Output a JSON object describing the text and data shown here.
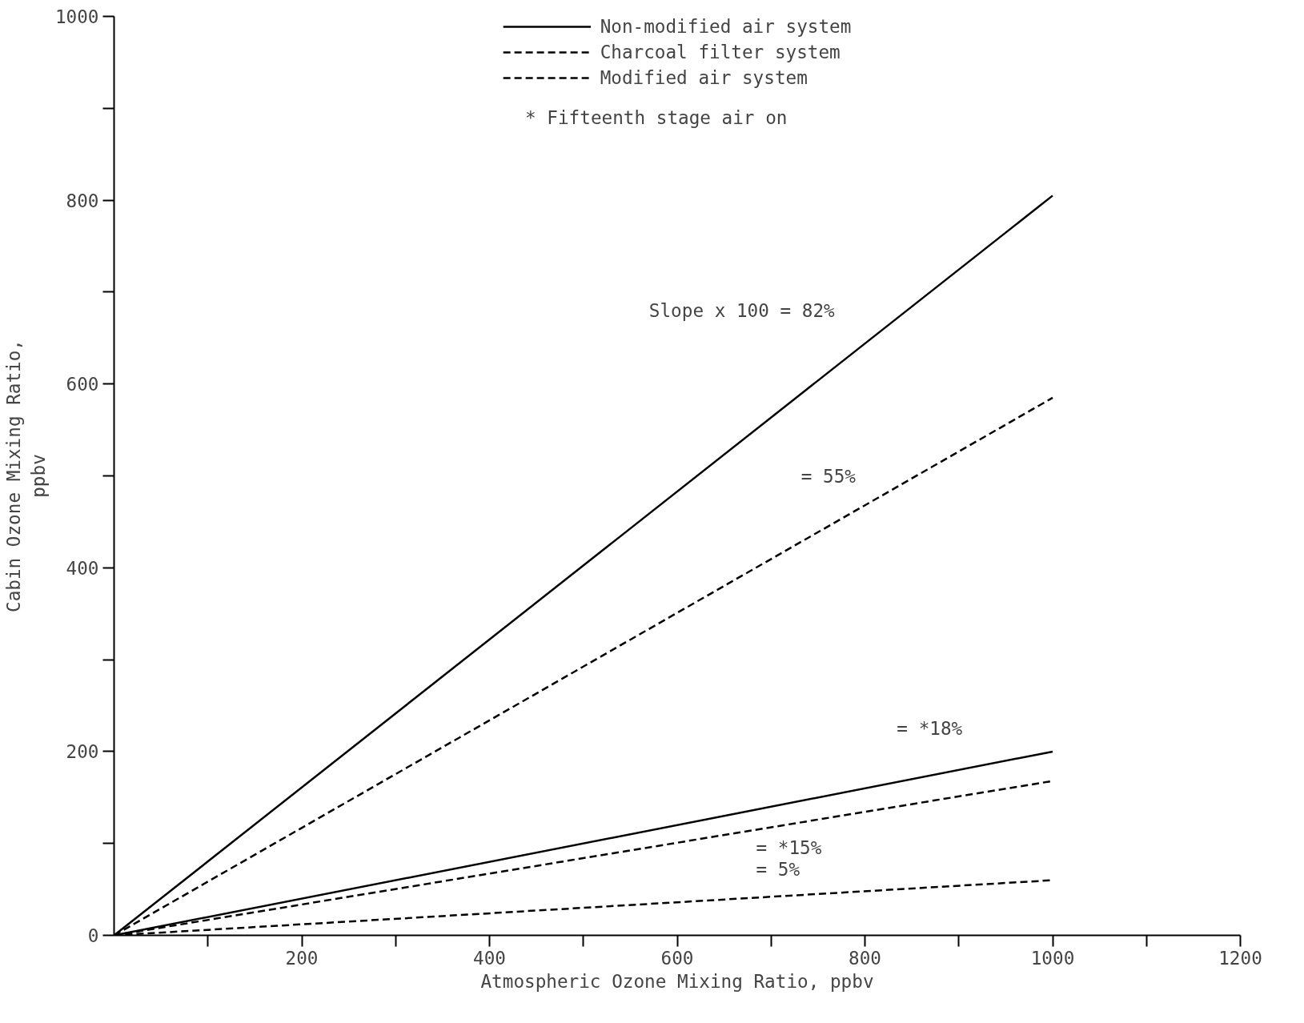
{
  "chart_data": {
    "type": "line",
    "xlabel": "Atmospheric Ozone Mixing Ratio, ppbv",
    "ylabel": "Cabin Ozone Mixing Ratio,\nppbv",
    "x": [
      0,
      1000
    ],
    "series": [
      {
        "name": "Non-modified air system",
        "color": "#000000",
        "values": [
          0,
          805
        ],
        "line_style": "solid"
      },
      {
        "name": "Charcoal filter system",
        "color": "#000000",
        "values": [
          0,
          585
        ],
        "line_style": "dashed"
      },
      {
        "name": "Modified air system",
        "color": "#000000",
        "values": [
          0,
          168
        ],
        "line_style": "dashed"
      },
      {
        "color": "#000000",
        "values": [
          0,
          200
        ],
        "line_style": "solid"
      },
      {
        "color": "#000000",
        "values": [
          0,
          60
        ],
        "line_style": "dashed"
      }
    ],
    "annotations": [
      "*      Fifteenth stage air on",
      "Slope x 100 = 82%",
      "= 55%",
      "= *18%",
      "= *15%",
      "=   5%"
    ],
    "xlim": [
      0,
      1200
    ],
    "ylim": [
      0,
      1000
    ],
    "xticks": [
      {
        "value": 100,
        "label": null
      },
      200,
      {
        "value": 300,
        "label": null
      },
      400,
      {
        "value": 500,
        "label": null
      },
      600,
      {
        "value": 700,
        "label": null
      },
      800,
      {
        "value": 900,
        "label": null
      },
      1000,
      {
        "value": 1100,
        "label": null
      },
      1200
    ],
    "yticks": [
      0,
      {
        "value": 100,
        "label": null
      },
      200,
      {
        "value": 300,
        "label": null
      },
      400,
      {
        "value": 500,
        "label": null
      },
      600,
      {
        "value": 700,
        "label": null
      },
      800,
      {
        "value": 900,
        "label": null
      },
      1000
    ],
    "grid": false,
    "legend": "top",
    "marker": "none"
  }
}
